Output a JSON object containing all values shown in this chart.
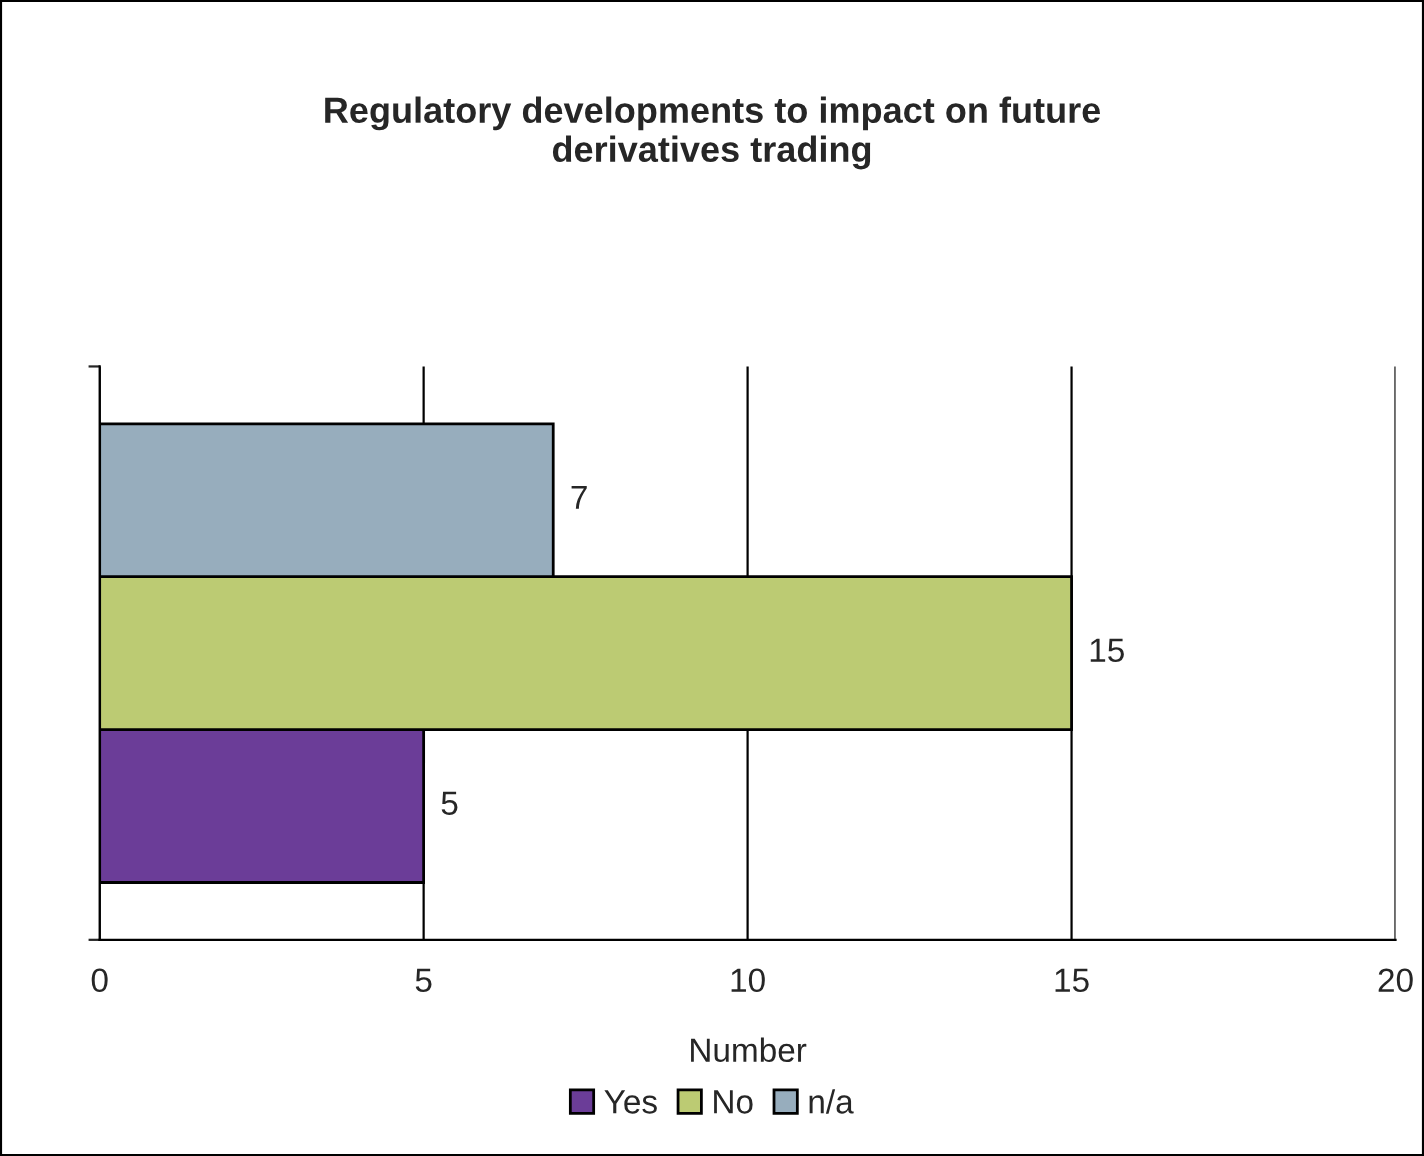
{
  "chart_data": {
    "type": "bar",
    "orientation": "horizontal",
    "title": "Regulatory developments to impact on future\nderivatives trading",
    "xlabel": "Number",
    "categories": [
      null
    ],
    "series": [
      {
        "name": "Yes",
        "color": "#6b3d98",
        "values": [
          5
        ]
      },
      {
        "name": "No",
        "color": "#bccb73",
        "values": [
          15
        ]
      },
      {
        "name": "n/a",
        "color": "#97adbd",
        "values": [
          7
        ]
      }
    ],
    "xlim": [
      0,
      20
    ],
    "xticks": [
      0,
      5,
      10,
      15,
      20
    ],
    "grid": "x",
    "legend": "bottom",
    "data_labels": true
  }
}
